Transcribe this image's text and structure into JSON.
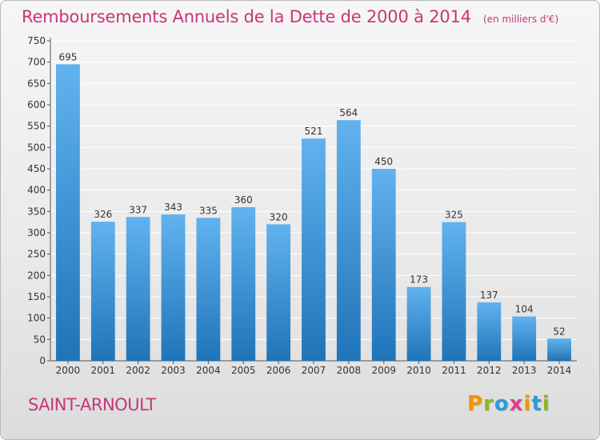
{
  "header": {
    "title": "Remboursements Annuels de la Dette de 2000 à 2014",
    "unit_note": "(en milliers d'€)"
  },
  "footer": {
    "city": "SAINT-ARNOULT",
    "logo": "Proxiti"
  },
  "colors": {
    "accent": "#c8357a",
    "bar_top": "#62b2ef",
    "bar_bottom": "#1f74b8",
    "grid": "#ffffff",
    "logo_letters": [
      "#f29400",
      "#8bb521",
      "#2d9cd9",
      "#e03c8a",
      "#f29400",
      "#2d9cd9",
      "#8bb521"
    ]
  },
  "chart_data": {
    "type": "bar",
    "categories": [
      "2000",
      "2001",
      "2002",
      "2003",
      "2004",
      "2005",
      "2006",
      "2007",
      "2008",
      "2009",
      "2010",
      "2011",
      "2012",
      "2013",
      "2014"
    ],
    "values": [
      695,
      326,
      337,
      343,
      335,
      360,
      320,
      521,
      564,
      450,
      173,
      325,
      137,
      104,
      52
    ],
    "title": "Remboursements Annuels de la Dette de 2000 à 2014",
    "ylim": [
      0,
      750
    ],
    "yticks": [
      0,
      50,
      100,
      150,
      200,
      250,
      300,
      350,
      400,
      450,
      500,
      550,
      600,
      650,
      700,
      750
    ],
    "grid": true,
    "data_labels": true
  }
}
